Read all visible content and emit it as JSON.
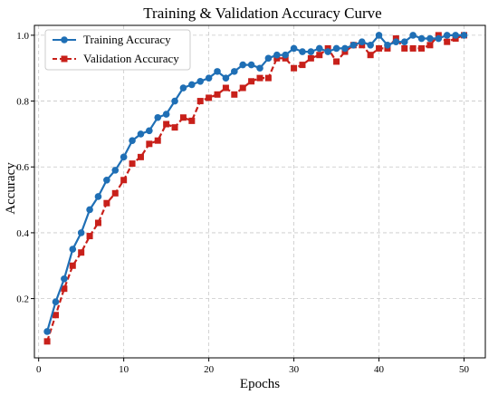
{
  "chart_data": {
    "type": "line",
    "title": "Training & Validation Accuracy Curve",
    "xlabel": "Epochs",
    "ylabel": "Accuracy",
    "xlim": [
      -0.5,
      52.5
    ],
    "ylim": [
      0.02,
      1.03
    ],
    "xticks": [
      0,
      10,
      20,
      30,
      40,
      50
    ],
    "yticks": [
      0.2,
      0.4,
      0.6,
      0.8,
      1.0
    ],
    "ytick_labels": [
      "0.2",
      "0.4",
      "0.6",
      "0.8",
      "1.0"
    ],
    "grid": true,
    "legend_position": "top-left",
    "x": [
      1,
      2,
      3,
      4,
      5,
      6,
      7,
      8,
      9,
      10,
      11,
      12,
      13,
      14,
      15,
      16,
      17,
      18,
      19,
      20,
      21,
      22,
      23,
      24,
      25,
      26,
      27,
      28,
      29,
      30,
      31,
      32,
      33,
      34,
      35,
      36,
      37,
      38,
      39,
      40,
      41,
      42,
      43,
      44,
      45,
      46,
      47,
      48,
      49,
      50
    ],
    "series": [
      {
        "name": "Training Accuracy",
        "color": "#1f6fb5",
        "marker": "circle",
        "line_style": "solid",
        "values": [
          0.1,
          0.19,
          0.26,
          0.35,
          0.4,
          0.47,
          0.51,
          0.56,
          0.59,
          0.63,
          0.68,
          0.7,
          0.71,
          0.75,
          0.76,
          0.8,
          0.84,
          0.85,
          0.86,
          0.87,
          0.89,
          0.87,
          0.89,
          0.91,
          0.91,
          0.9,
          0.93,
          0.94,
          0.94,
          0.96,
          0.95,
          0.95,
          0.96,
          0.95,
          0.96,
          0.96,
          0.97,
          0.98,
          0.97,
          1.0,
          0.97,
          0.98,
          0.98,
          1.0,
          0.99,
          0.99,
          0.99,
          1.0,
          1.0,
          1.0
        ]
      },
      {
        "name": "Validation Accuracy",
        "color": "#c8201a",
        "marker": "square",
        "line_style": "dashed",
        "values": [
          0.07,
          0.15,
          0.23,
          0.3,
          0.34,
          0.39,
          0.43,
          0.49,
          0.52,
          0.56,
          0.61,
          0.63,
          0.67,
          0.68,
          0.73,
          0.72,
          0.75,
          0.74,
          0.8,
          0.81,
          0.82,
          0.84,
          0.82,
          0.84,
          0.86,
          0.87,
          0.87,
          0.93,
          0.93,
          0.9,
          0.91,
          0.93,
          0.94,
          0.96,
          0.92,
          0.95,
          0.97,
          0.97,
          0.94,
          0.96,
          0.96,
          0.99,
          0.96,
          0.96,
          0.96,
          0.97,
          1.0,
          0.98,
          0.99,
          1.0
        ]
      }
    ]
  }
}
